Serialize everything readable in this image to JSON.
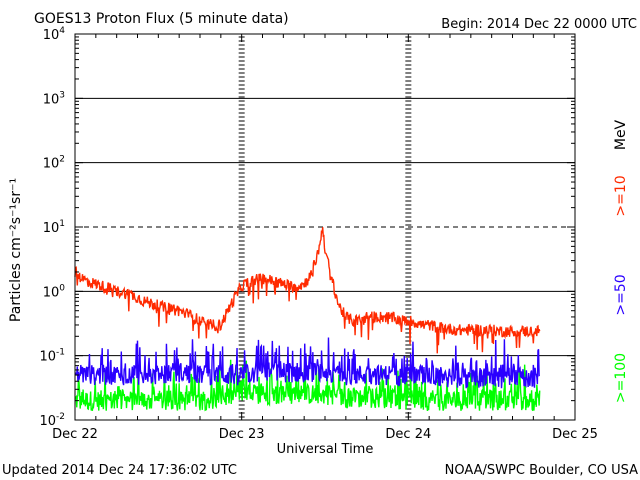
{
  "chart_data": {
    "type": "line",
    "title": "GOES13 Proton Flux (5 minute data)",
    "begin_label": "Begin: 2014 Dec 22 0000 UTC",
    "xlabel": "Universal Time",
    "ylabel": "Particles cm⁻²s⁻¹sr⁻¹",
    "footer_left": "Updated 2014 Dec 24 17:36:02 UTC",
    "footer_right": "NOAA/SWPC Boulder, CO USA",
    "y_scale": "log",
    "ylim": [
      0.01,
      10000
    ],
    "x_unit": "hours since 2014 Dec 22 0000 UTC",
    "xlim": [
      0,
      72
    ],
    "x_ticks": [
      {
        "value": 0,
        "label": "Dec 22"
      },
      {
        "value": 24,
        "label": "Dec 23"
      },
      {
        "value": 48,
        "label": "Dec 24"
      },
      {
        "value": 72,
        "label": "Dec 25"
      }
    ],
    "y_ticks": [
      {
        "value": 0.01,
        "label_base": "10",
        "label_exp": "-2"
      },
      {
        "value": 0.1,
        "label_base": "10",
        "label_exp": "-1"
      },
      {
        "value": 1,
        "label_base": "10",
        "label_exp": "0"
      },
      {
        "value": 10,
        "label_base": "10",
        "label_exp": "1"
      },
      {
        "value": 100,
        "label_base": "10",
        "label_exp": "2"
      },
      {
        "value": 1000,
        "label_base": "10",
        "label_exp": "3"
      },
      {
        "value": 10000,
        "label_base": "10",
        "label_exp": "4"
      }
    ],
    "legend_position": "right-vertical",
    "legend_unit": "MeV",
    "series": [
      {
        "name": ">=10",
        "color": "#ff2a00",
        "points": [
          [
            0,
            2.0
          ],
          [
            1,
            1.6
          ],
          [
            2,
            1.4
          ],
          [
            3,
            1.3
          ],
          [
            4,
            1.2
          ],
          [
            5,
            1.1
          ],
          [
            6,
            1.0
          ],
          [
            7,
            0.95
          ],
          [
            8,
            0.9
          ],
          [
            9,
            0.8
          ],
          [
            10,
            0.7
          ],
          [
            11,
            0.65
          ],
          [
            12,
            0.6
          ],
          [
            13,
            0.55
          ],
          [
            14,
            0.55
          ],
          [
            15,
            0.5
          ],
          [
            16,
            0.45
          ],
          [
            17,
            0.4
          ],
          [
            18,
            0.35
          ],
          [
            19,
            0.3
          ],
          [
            20,
            0.3
          ],
          [
            21,
            0.3
          ],
          [
            22,
            0.5
          ],
          [
            23,
            0.8
          ],
          [
            24,
            1.2
          ],
          [
            25,
            1.4
          ],
          [
            26,
            1.5
          ],
          [
            27,
            1.6
          ],
          [
            28,
            1.5
          ],
          [
            29,
            1.4
          ],
          [
            30,
            1.3
          ],
          [
            31,
            1.2
          ],
          [
            32,
            1.2
          ],
          [
            33,
            1.3
          ],
          [
            34,
            1.8
          ],
          [
            35,
            4.0
          ],
          [
            35.7,
            10.0
          ],
          [
            36,
            4.5
          ],
          [
            37,
            1.5
          ],
          [
            38,
            0.6
          ],
          [
            39,
            0.4
          ],
          [
            40,
            0.35
          ],
          [
            41,
            0.35
          ],
          [
            42,
            0.4
          ],
          [
            43,
            0.4
          ],
          [
            44,
            0.4
          ],
          [
            45,
            0.4
          ],
          [
            46,
            0.38
          ],
          [
            47,
            0.35
          ],
          [
            48,
            0.35
          ],
          [
            49,
            0.33
          ],
          [
            50,
            0.3
          ],
          [
            51,
            0.3
          ],
          [
            52,
            0.28
          ],
          [
            53,
            0.27
          ],
          [
            54,
            0.26
          ],
          [
            55,
            0.25
          ],
          [
            56,
            0.25
          ],
          [
            57,
            0.25
          ],
          [
            58,
            0.25
          ],
          [
            59,
            0.25
          ],
          [
            60,
            0.25
          ],
          [
            61,
            0.24
          ],
          [
            62,
            0.24
          ],
          [
            63,
            0.24
          ],
          [
            64,
            0.24
          ],
          [
            65,
            0.24
          ],
          [
            66,
            0.24
          ],
          [
            67,
            0.24
          ]
        ]
      },
      {
        "name": ">=50",
        "color": "#2a00ff",
        "points": [
          [
            0,
            0.05
          ],
          [
            3,
            0.05
          ],
          [
            6,
            0.05
          ],
          [
            9,
            0.05
          ],
          [
            12,
            0.05
          ],
          [
            15,
            0.055
          ],
          [
            18,
            0.05
          ],
          [
            21,
            0.05
          ],
          [
            24,
            0.05
          ],
          [
            27,
            0.055
          ],
          [
            30,
            0.055
          ],
          [
            33,
            0.055
          ],
          [
            36,
            0.055
          ],
          [
            39,
            0.05
          ],
          [
            42,
            0.05
          ],
          [
            45,
            0.05
          ],
          [
            48,
            0.05
          ],
          [
            51,
            0.05
          ],
          [
            54,
            0.045
          ],
          [
            57,
            0.045
          ],
          [
            60,
            0.045
          ],
          [
            63,
            0.045
          ],
          [
            67,
            0.045
          ]
        ]
      },
      {
        "name": ">=100",
        "color": "#00ff00",
        "points": [
          [
            0,
            0.02
          ],
          [
            3,
            0.02
          ],
          [
            6,
            0.02
          ],
          [
            9,
            0.02
          ],
          [
            12,
            0.02
          ],
          [
            15,
            0.02
          ],
          [
            18,
            0.02
          ],
          [
            21,
            0.022
          ],
          [
            24,
            0.025
          ],
          [
            27,
            0.025
          ],
          [
            30,
            0.025
          ],
          [
            33,
            0.025
          ],
          [
            36,
            0.025
          ],
          [
            39,
            0.022
          ],
          [
            42,
            0.022
          ],
          [
            45,
            0.022
          ],
          [
            48,
            0.02
          ],
          [
            51,
            0.02
          ],
          [
            54,
            0.02
          ],
          [
            57,
            0.02
          ],
          [
            60,
            0.02
          ],
          [
            63,
            0.02
          ],
          [
            67,
            0.02
          ]
        ]
      }
    ]
  }
}
